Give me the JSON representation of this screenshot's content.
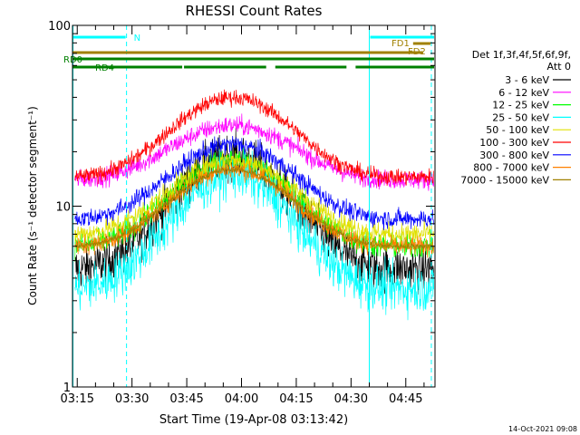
{
  "chart_data": {
    "type": "line",
    "title": "RHESSI Count Rates",
    "ylabel": "Count Rate (s⁻¹ detector segment⁻¹)",
    "xlabel": "Start Time (19-Apr-08 03:13:42)",
    "y_scale": "log",
    "ylim": [
      1,
      100
    ],
    "xlim": [
      "03:13:42",
      "04:53:00"
    ],
    "y_ticks": [
      {
        "value": 1,
        "label": "1"
      },
      {
        "value": 10,
        "label": "10"
      },
      {
        "value": 100,
        "label": "100"
      }
    ],
    "x_ticks": [
      {
        "value": "03:15",
        "label": "03:15"
      },
      {
        "value": "03:30",
        "label": "03:30"
      },
      {
        "value": "03:45",
        "label": "03:45"
      },
      {
        "value": "04:00",
        "label": "04:00"
      },
      {
        "value": "04:15",
        "label": "04:15"
      },
      {
        "value": "04:30",
        "label": "04:30"
      },
      {
        "value": "04:45",
        "label": "04:45"
      }
    ],
    "legend": {
      "position": "right",
      "header_line1": "Det 1f,3f,4f,5f,6f,9f,",
      "header_line2": "Att 0"
    },
    "series": [
      {
        "name": "3 - 6 keV",
        "color": "#000000",
        "trough": 4.5,
        "peak": 19,
        "noise": 0.28
      },
      {
        "name": "6 - 12 keV",
        "color": "#ff00ff",
        "trough": 14,
        "peak": 28,
        "noise": 0.12
      },
      {
        "name": "12 - 25 keV",
        "color": "#00ff00",
        "trough": 6,
        "peak": 18,
        "noise": 0.16
      },
      {
        "name": "25 - 50 keV",
        "color": "#00ffff",
        "trough": 3.5,
        "peak": 15,
        "noise": 0.3
      },
      {
        "name": "50 - 100 keV",
        "color": "#e0e000",
        "trough": 7,
        "peak": 18,
        "noise": 0.14
      },
      {
        "name": "100 - 300 keV",
        "color": "#ff0000",
        "trough": 14.5,
        "peak": 40,
        "noise": 0.1
      },
      {
        "name": "300 - 800 keV",
        "color": "#0000ff",
        "trough": 8.5,
        "peak": 22,
        "noise": 0.12
      },
      {
        "name": "800 - 7000 keV",
        "color": "#ff8000",
        "trough": 6,
        "peak": 16,
        "noise": 0.12
      },
      {
        "name": "7000 - 15000 keV",
        "color": "#a08000",
        "trough": 6,
        "peak": 16,
        "noise": 0.04
      }
    ],
    "flags": [
      {
        "label": "N",
        "color": "#00ffff",
        "segments": [
          [
            "03:13:42",
            "03:28:30"
          ],
          [
            "04:35:00",
            "04:53:00"
          ]
        ]
      },
      {
        "label": "FD1",
        "color": "#a08000",
        "segments": [
          [
            "04:47:00",
            "04:52:00"
          ]
        ]
      },
      {
        "label": "FD2",
        "color": "#a08000",
        "segments": [
          [
            "03:13:42",
            "04:50:00"
          ]
        ]
      },
      {
        "label": "RD0",
        "color": "#008000",
        "segments": [
          [
            "03:13:42",
            "04:53:00"
          ]
        ]
      },
      {
        "label": "RD4",
        "color": "#008000",
        "segments": [
          [
            "03:13:42",
            "03:44:00"
          ],
          [
            "03:44:00",
            "04:07:00"
          ],
          [
            "04:09:00",
            "04:29:00"
          ],
          [
            "04:31:00",
            "04:53:00"
          ]
        ]
      }
    ],
    "vertical_markers": [
      {
        "time": "03:13:50",
        "color": "#00ffff",
        "style": "solid"
      },
      {
        "time": "03:28:30",
        "color": "#00ffff",
        "style": "dashed"
      },
      {
        "time": "04:35:00",
        "color": "#00ffff",
        "style": "solid"
      },
      {
        "time": "04:52:00",
        "color": "#00ffff",
        "style": "dashed"
      }
    ]
  },
  "footer": {
    "timestamp": "14-Oct-2021 09:08"
  }
}
